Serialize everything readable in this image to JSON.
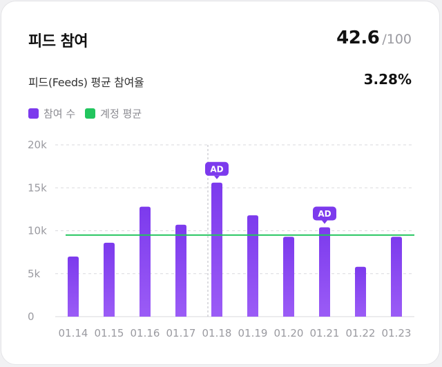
{
  "header": {
    "title": "피드 참여",
    "score_value": "42.6",
    "score_max": "/100"
  },
  "summary": {
    "label": "피드(Feeds) 평균 참여율",
    "value": "3.28%"
  },
  "legend": [
    {
      "label": "참여 수",
      "color": "#7c3aed"
    },
    {
      "label": "계정 평균",
      "color": "#22c55e"
    }
  ],
  "chart_data": {
    "type": "bar",
    "categories": [
      "01.14",
      "01.15",
      "01.16",
      "01.17",
      "01.18",
      "01.19",
      "01.20",
      "01.21",
      "01.22",
      "01.23"
    ],
    "series": [
      {
        "name": "참여 수",
        "values": [
          7000,
          8600,
          12800,
          10700,
          15600,
          11800,
          9300,
          10400,
          5800,
          9300
        ]
      }
    ],
    "reference_line": {
      "name": "계정 평균",
      "value": 9500,
      "color": "#22c55e"
    },
    "annotations": [
      {
        "category": "01.18",
        "label": "AD"
      },
      {
        "category": "01.21",
        "label": "AD"
      }
    ],
    "highlight_category": "01.18",
    "yticks": [
      "0",
      "5k",
      "10k",
      "15k",
      "20k"
    ],
    "ylim": [
      0,
      20000
    ],
    "grid": true,
    "bar_color": "#7c3aed"
  }
}
